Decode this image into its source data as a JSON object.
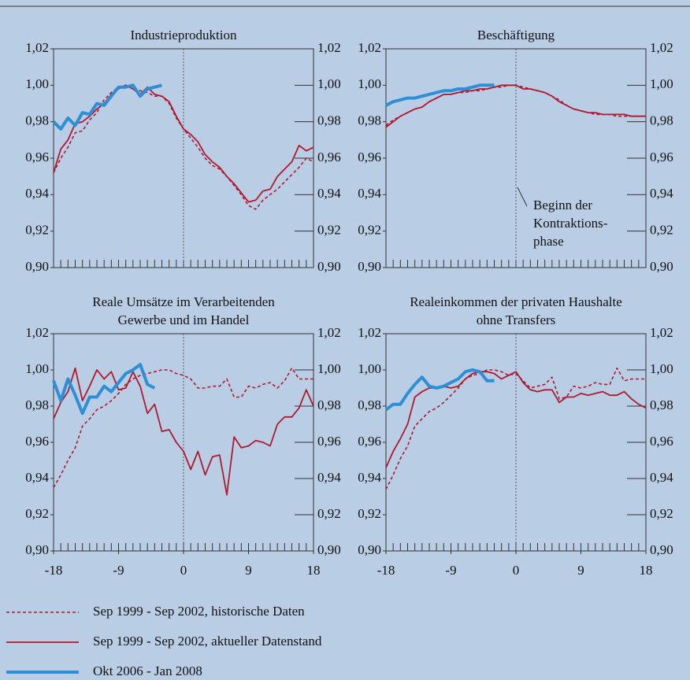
{
  "chart_data": [
    {
      "type": "line",
      "title": [
        "Industrieproduktion"
      ],
      "x": [
        -18,
        -17,
        -16,
        -15,
        -14,
        -13,
        -12,
        -11,
        -10,
        -9,
        -8,
        -7,
        -6,
        -5,
        -4,
        -3,
        -2,
        -1,
        0,
        1,
        2,
        3,
        4,
        5,
        6,
        7,
        8,
        9,
        10,
        11,
        12,
        13,
        14,
        15,
        16,
        17,
        18
      ],
      "series": [
        {
          "name": "Sep 1999 - Sep 2002, historische Daten",
          "color": "#b01a2e",
          "linestyle": "dashed",
          "values": [
            0.952,
            0.96,
            0.966,
            0.974,
            0.975,
            0.981,
            0.985,
            0.992,
            0.996,
            0.999,
            1.0,
            0.998,
            0.997,
            0.996,
            0.994,
            0.994,
            0.99,
            0.982,
            0.976,
            0.971,
            0.966,
            0.96,
            0.956,
            0.954,
            0.95,
            0.945,
            0.94,
            0.934,
            0.932,
            0.937,
            0.94,
            0.943,
            0.947,
            0.951,
            0.955,
            0.96,
            0.958
          ]
        },
        {
          "name": "Sep 1999 - Sep 2002, aktueller Datenstand",
          "color": "#b01a2e",
          "linestyle": "solid",
          "values": [
            0.952,
            0.965,
            0.97,
            0.979,
            0.98,
            0.983,
            0.987,
            0.99,
            0.995,
            0.998,
            1.0,
            0.998,
            0.995,
            0.999,
            0.995,
            0.994,
            0.991,
            0.983,
            0.976,
            0.973,
            0.969,
            0.962,
            0.958,
            0.955,
            0.95,
            0.946,
            0.941,
            0.936,
            0.937,
            0.942,
            0.943,
            0.95,
            0.954,
            0.958,
            0.967,
            0.964,
            0.966
          ]
        },
        {
          "name": "Okt 2006 - Jan 2008",
          "color": "#2e8fd6",
          "linestyle": "bold",
          "values": [
            0.98,
            0.976,
            0.982,
            0.978,
            0.985,
            0.984,
            0.99,
            0.989,
            0.994,
            0.999,
            0.999,
            1.0,
            0.994,
            0.998,
            0.999,
            1.0,
            null,
            null,
            null,
            null,
            null,
            null,
            null,
            null,
            null,
            null,
            null,
            null,
            null,
            null,
            null,
            null,
            null,
            null,
            null,
            null,
            null
          ]
        }
      ],
      "xlim": [
        -18,
        18
      ],
      "ylim": [
        0.9,
        1.02
      ],
      "yticks": [
        {
          "value": 0.9,
          "label": "0,90"
        },
        {
          "value": 0.92,
          "label": "0,92"
        },
        {
          "value": 0.94,
          "label": "0,94"
        },
        {
          "value": 0.96,
          "label": "0,96"
        },
        {
          "value": 0.98,
          "label": "0,98"
        },
        {
          "value": 1.0,
          "label": "1,00"
        },
        {
          "value": 1.02,
          "label": "1,02"
        }
      ]
    },
    {
      "type": "line",
      "title": [
        "Beschäftigung"
      ],
      "annotation": [
        "Beginn der",
        "Kontraktions-",
        "phase"
      ],
      "x": [
        -18,
        -17,
        -16,
        -15,
        -14,
        -13,
        -12,
        -11,
        -10,
        -9,
        -8,
        -7,
        -6,
        -5,
        -4,
        -3,
        -2,
        -1,
        0,
        1,
        2,
        3,
        4,
        5,
        6,
        7,
        8,
        9,
        10,
        11,
        12,
        13,
        14,
        15,
        16,
        17,
        18
      ],
      "series": [
        {
          "color": "#b01a2e",
          "linestyle": "dashed",
          "values": [
            0.978,
            0.981,
            0.983,
            0.985,
            0.987,
            0.988,
            0.991,
            0.993,
            0.995,
            0.995,
            0.996,
            0.996,
            0.997,
            0.997,
            0.998,
            0.999,
            0.999,
            1.0,
            1.0,
            0.999,
            0.998,
            0.997,
            0.996,
            0.994,
            0.992,
            0.989,
            0.987,
            0.986,
            0.985,
            0.984,
            0.984,
            0.984,
            0.983,
            0.983,
            0.983,
            0.983,
            0.983
          ]
        },
        {
          "color": "#b01a2e",
          "linestyle": "solid",
          "values": [
            0.977,
            0.98,
            0.983,
            0.985,
            0.987,
            0.988,
            0.991,
            0.993,
            0.995,
            0.995,
            0.996,
            0.997,
            0.997,
            0.998,
            0.998,
            0.999,
            1.0,
            1.0,
            1.0,
            0.998,
            0.998,
            0.997,
            0.996,
            0.994,
            0.991,
            0.989,
            0.987,
            0.986,
            0.985,
            0.985,
            0.984,
            0.984,
            0.984,
            0.984,
            0.983,
            0.983,
            0.983
          ]
        },
        {
          "color": "#2e8fd6",
          "linestyle": "bold",
          "values": [
            0.989,
            0.991,
            0.992,
            0.993,
            0.993,
            0.994,
            0.995,
            0.996,
            0.997,
            0.997,
            0.998,
            0.998,
            0.999,
            1.0,
            1.0,
            1.0,
            null,
            null,
            null,
            null,
            null,
            null,
            null,
            null,
            null,
            null,
            null,
            null,
            null,
            null,
            null,
            null,
            null,
            null,
            null,
            null,
            null
          ]
        }
      ],
      "xlim": [
        -18,
        18
      ],
      "ylim": [
        0.9,
        1.02
      ],
      "yticks": [
        {
          "value": 0.9,
          "label": "0,90"
        },
        {
          "value": 0.92,
          "label": "0,92"
        },
        {
          "value": 0.94,
          "label": "0,94"
        },
        {
          "value": 0.96,
          "label": "0,96"
        },
        {
          "value": 0.98,
          "label": "0,98"
        },
        {
          "value": 1.0,
          "label": "1,00"
        },
        {
          "value": 1.02,
          "label": "1,02"
        }
      ]
    },
    {
      "type": "line",
      "title": [
        "Reale Umsätze im Verarbeitenden",
        "Gewerbe und im Handel"
      ],
      "x": [
        -18,
        -17,
        -16,
        -15,
        -14,
        -13,
        -12,
        -11,
        -10,
        -9,
        -8,
        -7,
        -6,
        -5,
        -4,
        -3,
        -2,
        -1,
        0,
        1,
        2,
        3,
        4,
        5,
        6,
        7,
        8,
        9,
        10,
        11,
        12,
        13,
        14,
        15,
        16,
        17,
        18
      ],
      "series": [
        {
          "color": "#b01a2e",
          "linestyle": "dashed",
          "values": [
            0.935,
            0.942,
            0.95,
            0.957,
            0.969,
            0.973,
            0.978,
            0.98,
            0.983,
            0.987,
            0.992,
            0.995,
            0.997,
            0.998,
            0.999,
            1.0,
            1.0,
            0.998,
            0.997,
            0.995,
            0.99,
            0.99,
            0.991,
            0.991,
            0.995,
            0.985,
            0.985,
            0.991,
            0.99,
            0.992,
            0.993,
            0.99,
            0.994,
            1.001,
            0.995,
            0.995,
            0.995
          ]
        },
        {
          "color": "#b01a2e",
          "linestyle": "solid",
          "values": [
            0.973,
            0.982,
            0.988,
            1.001,
            0.983,
            0.991,
            1.0,
            0.995,
            0.999,
            0.989,
            0.99,
            0.999,
            0.991,
            0.976,
            0.981,
            0.966,
            0.967,
            0.96,
            0.955,
            0.945,
            0.955,
            0.942,
            0.952,
            0.953,
            0.931,
            0.963,
            0.957,
            0.958,
            0.961,
            0.96,
            0.958,
            0.97,
            0.974,
            0.974,
            0.979,
            0.989,
            0.98
          ]
        },
        {
          "color": "#2e8fd6",
          "linestyle": "bold",
          "values": [
            0.994,
            0.983,
            0.995,
            0.986,
            0.976,
            0.985,
            0.985,
            0.991,
            0.988,
            0.993,
            0.998,
            1.0,
            1.003,
            0.992,
            0.99,
            null,
            null,
            null,
            null,
            null,
            null,
            null,
            null,
            null,
            null,
            null,
            null,
            null,
            null,
            null,
            null,
            null,
            null,
            null,
            null,
            null,
            null
          ]
        }
      ],
      "xlim": [
        -18,
        18
      ],
      "ylim": [
        0.9,
        1.02
      ],
      "xticks": [
        -18,
        -9,
        0,
        9,
        18
      ],
      "yticks": [
        {
          "value": 0.9,
          "label": "0,90"
        },
        {
          "value": 0.92,
          "label": "0,92"
        },
        {
          "value": 0.94,
          "label": "0,94"
        },
        {
          "value": 0.96,
          "label": "0,96"
        },
        {
          "value": 0.98,
          "label": "0,98"
        },
        {
          "value": 1.0,
          "label": "1,00"
        },
        {
          "value": 1.02,
          "label": "1,02"
        }
      ]
    },
    {
      "type": "line",
      "title": [
        "Realeinkommen der privaten Haushalte",
        "ohne Transfers"
      ],
      "x": [
        -18,
        -17,
        -16,
        -15,
        -14,
        -13,
        -12,
        -11,
        -10,
        -9,
        -8,
        -7,
        -6,
        -5,
        -4,
        -3,
        -2,
        -1,
        0,
        1,
        2,
        3,
        4,
        5,
        6,
        7,
        8,
        9,
        10,
        11,
        12,
        13,
        14,
        15,
        16,
        17,
        18
      ],
      "series": [
        {
          "color": "#b01a2e",
          "linestyle": "dashed",
          "values": [
            0.934,
            0.942,
            0.951,
            0.958,
            0.969,
            0.973,
            0.977,
            0.979,
            0.982,
            0.986,
            0.99,
            0.995,
            0.997,
            0.998,
            1.0,
            1.0,
            0.999,
            0.997,
            0.998,
            0.994,
            0.99,
            0.991,
            0.992,
            0.996,
            0.984,
            0.985,
            0.991,
            0.99,
            0.991,
            0.993,
            0.992,
            0.992,
            1.001,
            0.994,
            0.995,
            0.995,
            0.995
          ]
        },
        {
          "color": "#b01a2e",
          "linestyle": "solid",
          "values": [
            0.946,
            0.955,
            0.962,
            0.97,
            0.985,
            0.988,
            0.99,
            0.99,
            0.991,
            0.99,
            0.991,
            0.995,
            0.998,
            0.999,
            0.999,
            0.998,
            0.995,
            0.997,
            0.999,
            0.993,
            0.989,
            0.988,
            0.989,
            0.989,
            0.982,
            0.985,
            0.985,
            0.987,
            0.986,
            0.987,
            0.988,
            0.986,
            0.986,
            0.988,
            0.984,
            0.981,
            0.979
          ]
        },
        {
          "color": "#2e8fd6",
          "linestyle": "bold",
          "values": [
            0.978,
            0.981,
            0.981,
            0.987,
            0.992,
            0.996,
            0.991,
            0.99,
            0.991,
            0.993,
            0.995,
            0.999,
            1.0,
            0.999,
            0.994,
            0.994,
            null,
            null,
            null,
            null,
            null,
            null,
            null,
            null,
            null,
            null,
            null,
            null,
            null,
            null,
            null,
            null,
            null,
            null,
            null,
            null,
            null
          ]
        }
      ],
      "xlim": [
        -18,
        18
      ],
      "ylim": [
        0.9,
        1.02
      ],
      "xticks": [
        -18,
        -9,
        0,
        9,
        18
      ],
      "yticks": [
        {
          "value": 0.9,
          "label": "0,90"
        },
        {
          "value": 0.92,
          "label": "0,92"
        },
        {
          "value": 0.94,
          "label": "0,94"
        },
        {
          "value": 0.96,
          "label": "0,96"
        },
        {
          "value": 0.98,
          "label": "0,98"
        },
        {
          "value": 1.0,
          "label": "1,00"
        },
        {
          "value": 1.02,
          "label": "1,02"
        }
      ]
    }
  ]
}
